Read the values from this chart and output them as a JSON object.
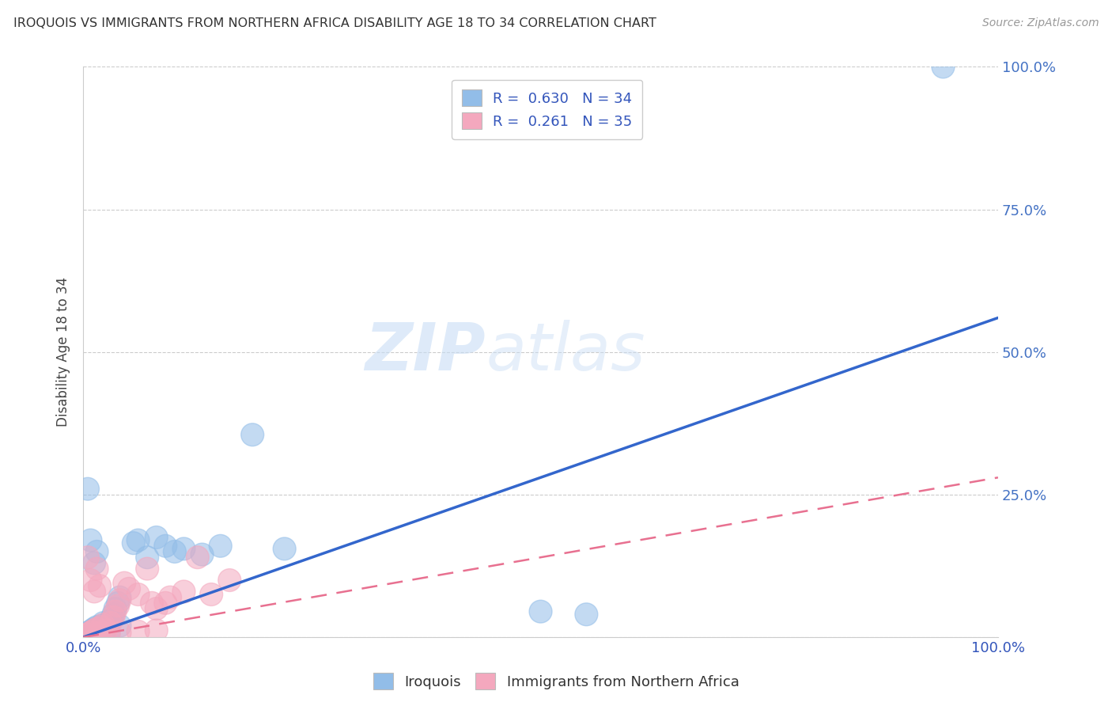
{
  "title": "IROQUOIS VS IMMIGRANTS FROM NORTHERN AFRICA DISABILITY AGE 18 TO 34 CORRELATION CHART",
  "source": "Source: ZipAtlas.com",
  "ylabel": "Disability Age 18 to 34",
  "watermark_zip": "ZIP",
  "watermark_atlas": "atlas",
  "xlim": [
    0,
    1
  ],
  "ylim": [
    0,
    1
  ],
  "xticks": [
    0.0,
    0.2,
    0.4,
    0.6,
    0.8,
    1.0
  ],
  "yticks": [
    0.0,
    0.25,
    0.5,
    0.75,
    1.0
  ],
  "xticklabels": [
    "0.0%",
    "",
    "",
    "",
    "",
    "100.0%"
  ],
  "right_yticklabels": [
    "",
    "25.0%",
    "50.0%",
    "75.0%",
    "100.0%"
  ],
  "blue_R": 0.63,
  "blue_N": 34,
  "pink_R": 0.261,
  "pink_N": 35,
  "blue_color": "#92BDE8",
  "pink_color": "#F4A8BE",
  "blue_line_color": "#3366CC",
  "pink_line_color": "#E87090",
  "grid_color": "#CCCCCC",
  "blue_line_x0": 0.0,
  "blue_line_y0": 0.0,
  "blue_line_x1": 1.0,
  "blue_line_y1": 0.56,
  "pink_line_x0": 0.0,
  "pink_line_y0": 0.0,
  "pink_line_x1": 1.0,
  "pink_line_y1": 0.28,
  "blue_scatter_x": [
    0.005,
    0.008,
    0.01,
    0.012,
    0.015,
    0.018,
    0.02,
    0.022,
    0.025,
    0.028,
    0.03,
    0.033,
    0.035,
    0.038,
    0.04,
    0.005,
    0.008,
    0.012,
    0.015,
    0.055,
    0.06,
    0.07,
    0.08,
    0.09,
    0.1,
    0.11,
    0.13,
    0.15,
    0.185,
    0.22,
    0.04,
    0.5,
    0.55,
    0.94
  ],
  "blue_scatter_y": [
    0.008,
    0.01,
    0.012,
    0.015,
    0.018,
    0.01,
    0.02,
    0.025,
    0.015,
    0.008,
    0.03,
    0.04,
    0.05,
    0.06,
    0.07,
    0.26,
    0.17,
    0.13,
    0.15,
    0.165,
    0.17,
    0.14,
    0.175,
    0.16,
    0.15,
    0.155,
    0.145,
    0.16,
    0.355,
    0.155,
    0.02,
    0.045,
    0.04,
    1.0
  ],
  "pink_scatter_x": [
    0.005,
    0.008,
    0.01,
    0.012,
    0.015,
    0.018,
    0.02,
    0.022,
    0.025,
    0.028,
    0.03,
    0.033,
    0.035,
    0.038,
    0.04,
    0.005,
    0.008,
    0.012,
    0.015,
    0.018,
    0.045,
    0.05,
    0.06,
    0.07,
    0.075,
    0.08,
    0.09,
    0.095,
    0.11,
    0.125,
    0.14,
    0.16,
    0.04,
    0.06,
    0.08
  ],
  "pink_scatter_y": [
    0.005,
    0.008,
    0.01,
    0.012,
    0.015,
    0.008,
    0.018,
    0.022,
    0.012,
    0.006,
    0.025,
    0.035,
    0.045,
    0.055,
    0.065,
    0.14,
    0.1,
    0.08,
    0.12,
    0.09,
    0.095,
    0.085,
    0.075,
    0.12,
    0.06,
    0.05,
    0.06,
    0.07,
    0.08,
    0.14,
    0.075,
    0.1,
    0.008,
    0.01,
    0.012
  ],
  "legend_text_color": "#3355BB",
  "background_color": "#FFFFFF",
  "right_axis_color": "#4472C4"
}
